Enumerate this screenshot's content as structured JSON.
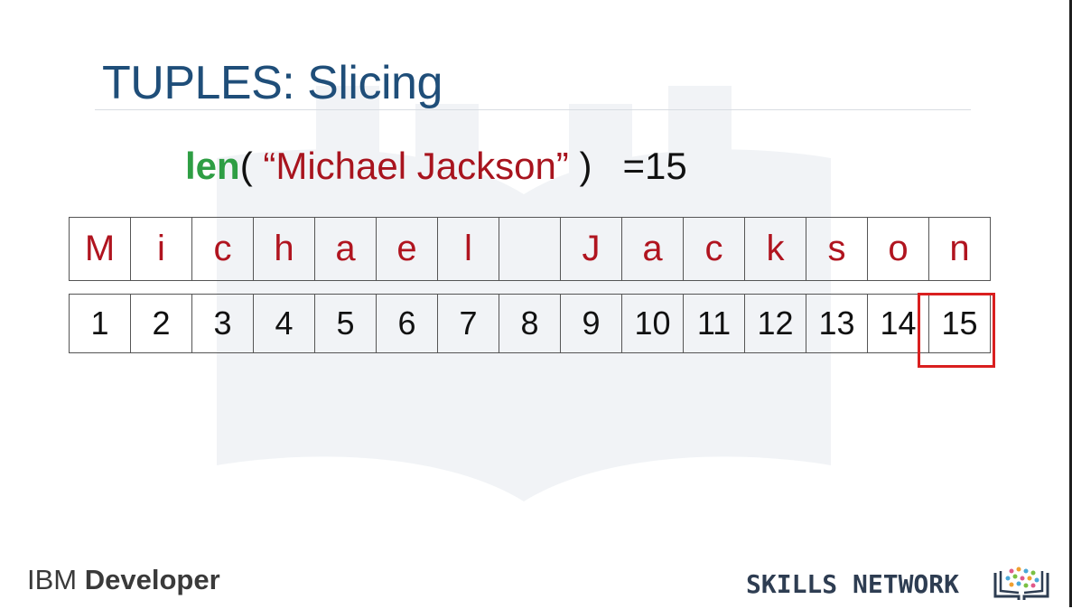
{
  "slide": {
    "title": "TUPLES: Slicing",
    "formula": {
      "fn": "len",
      "open": "( ",
      "string": "“Michael Jackson”",
      "close": " )",
      "result": "=15"
    },
    "characters": [
      "M",
      "i",
      "c",
      "h",
      "a",
      "e",
      "l",
      "",
      "J",
      "a",
      "c",
      "k",
      "s",
      "o",
      "n"
    ],
    "indices": [
      "1",
      "2",
      "3",
      "4",
      "5",
      "6",
      "7",
      "8",
      "9",
      "10",
      "11",
      "12",
      "13",
      "14",
      "15"
    ],
    "highlighted_index": "15"
  },
  "footer": {
    "left_brand_regular": "IBM ",
    "left_brand_bold": "Developer",
    "right_brand": "SKILLS NETWORK"
  },
  "colors": {
    "title": "#1f4e79",
    "function": "#2e9e44",
    "string": "#a8141e",
    "highlight": "#d91f1f"
  },
  "icons": {
    "watermark": "open-book-icon",
    "skills_logo": "book-dots-logo"
  }
}
